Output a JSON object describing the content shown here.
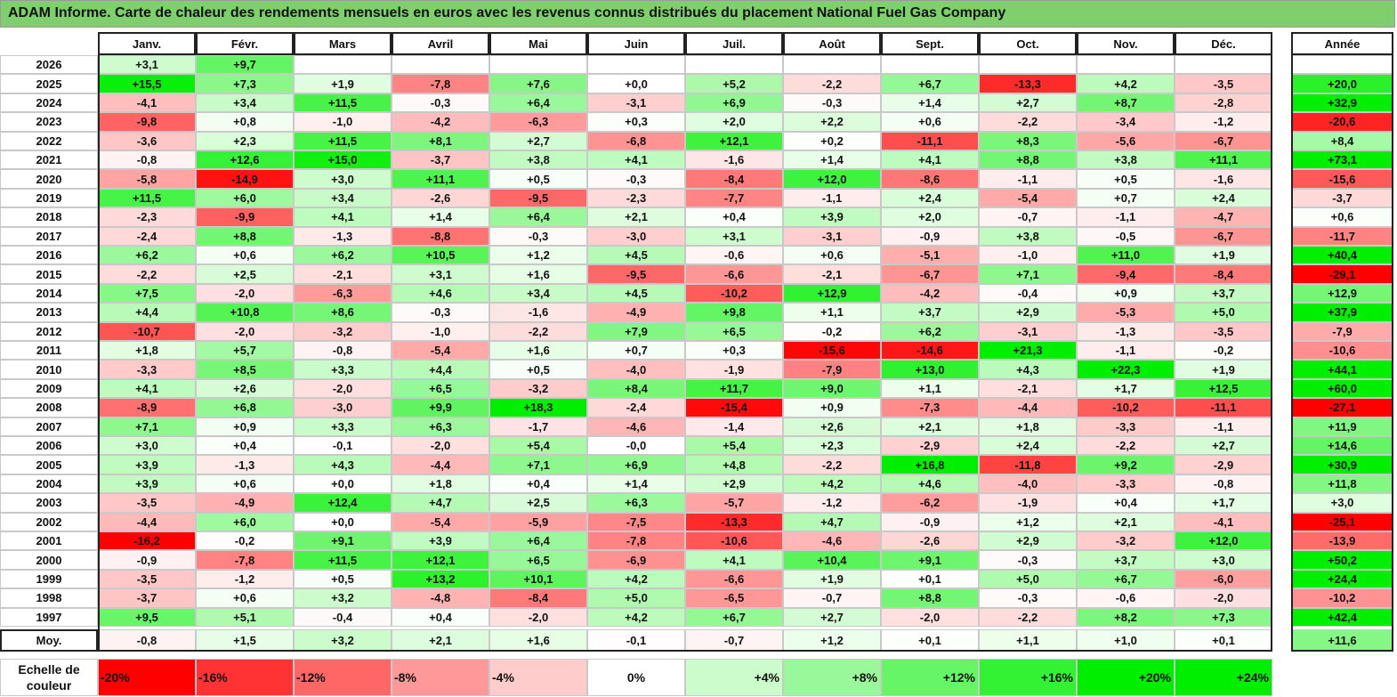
{
  "title": "ADAM Informe. Carte de chaleur des rendements mensuels en euros avec les revenus connus distribués du placement National Fuel Gas Company",
  "chart_data": {
    "type": "heatmap",
    "title": "ADAM Informe. Carte de chaleur des rendements mensuels en euros avec les revenus connus distribués du placement National Fuel Gas Company",
    "months": [
      "Janv.",
      "Févr.",
      "Mars",
      "Avril",
      "Mai",
      "Juin",
      "Juil.",
      "Août",
      "Sept.",
      "Oct.",
      "Nov.",
      "Déc."
    ],
    "year_column_label": "Année",
    "rows": [
      {
        "year": "2026",
        "values": [
          "+3,1",
          "+9,7",
          "",
          "",
          "",
          "",
          "",
          "",
          "",
          "",
          "",
          ""
        ],
        "annual": ""
      },
      {
        "year": "2025",
        "values": [
          "+15,5",
          "+7,3",
          "+1,9",
          "-7,8",
          "+7,6",
          "+0,0",
          "+5,2",
          "-2,2",
          "+6,7",
          "-13,3",
          "+4,2",
          "-3,5"
        ],
        "annual": "+20,0"
      },
      {
        "year": "2024",
        "values": [
          "-4,1",
          "+3,4",
          "+11,5",
          "-0,3",
          "+6,4",
          "-3,1",
          "+6,9",
          "-0,3",
          "+1,4",
          "+2,7",
          "+8,7",
          "-2,8"
        ],
        "annual": "+32,9"
      },
      {
        "year": "2023",
        "values": [
          "-9,8",
          "+0,8",
          "-1,0",
          "-4,2",
          "-6,3",
          "+0,3",
          "+2,0",
          "+2,2",
          "+0,6",
          "-2,2",
          "-3,4",
          "-1,2"
        ],
        "annual": "-20,6"
      },
      {
        "year": "2022",
        "values": [
          "-3,6",
          "+2,3",
          "+11,5",
          "+8,1",
          "+2,7",
          "-6,8",
          "+12,1",
          "+0,2",
          "-11,1",
          "+8,3",
          "-5,6",
          "-6,7"
        ],
        "annual": "+8,4"
      },
      {
        "year": "2021",
        "values": [
          "-0,8",
          "+12,6",
          "+15,0",
          "-3,7",
          "+3,8",
          "+4,1",
          "-1,6",
          "+1,4",
          "+4,1",
          "+8,8",
          "+3,8",
          "+11,1"
        ],
        "annual": "+73,1"
      },
      {
        "year": "2020",
        "values": [
          "-5,8",
          "-14,9",
          "+3,0",
          "+11,1",
          "+0,5",
          "-0,3",
          "-8,4",
          "+12,0",
          "-8,6",
          "-1,1",
          "+0,5",
          "-1,6"
        ],
        "annual": "-15,6"
      },
      {
        "year": "2019",
        "values": [
          "+11,5",
          "+6,0",
          "+3,4",
          "-2,6",
          "-9,5",
          "-2,3",
          "-7,7",
          "-1,1",
          "+2,4",
          "-5,4",
          "+0,7",
          "+2,4"
        ],
        "annual": "-3,7"
      },
      {
        "year": "2018",
        "values": [
          "-2,3",
          "-9,9",
          "+4,1",
          "+1,4",
          "+6,4",
          "+2,1",
          "+0,4",
          "+3,9",
          "+2,0",
          "-0,7",
          "-1,1",
          "-4,7"
        ],
        "annual": "+0,6"
      },
      {
        "year": "2017",
        "values": [
          "-2,4",
          "+8,8",
          "-1,3",
          "-8,8",
          "-0,3",
          "-3,0",
          "+3,1",
          "-3,1",
          "-0,9",
          "+3,8",
          "-0,5",
          "-6,7"
        ],
        "annual": "-11,7"
      },
      {
        "year": "2016",
        "values": [
          "+6,2",
          "+0,6",
          "+6,2",
          "+10,5",
          "+1,2",
          "+4,5",
          "-0,6",
          "+0,6",
          "-5,1",
          "-1,0",
          "+11,0",
          "+1,9"
        ],
        "annual": "+40,4"
      },
      {
        "year": "2015",
        "values": [
          "-2,2",
          "+2,5",
          "-2,1",
          "+3,1",
          "+1,6",
          "-9,5",
          "-6,6",
          "-2,1",
          "-6,7",
          "+7,1",
          "-9,4",
          "-8,4"
        ],
        "annual": "-29,1"
      },
      {
        "year": "2014",
        "values": [
          "+7,5",
          "-2,0",
          "-6,3",
          "+4,6",
          "+3,4",
          "+4,5",
          "-10,2",
          "+12,9",
          "-4,2",
          "-0,4",
          "+0,9",
          "+3,7"
        ],
        "annual": "+12,9"
      },
      {
        "year": "2013",
        "values": [
          "+4,4",
          "+10,8",
          "+8,6",
          "-0,3",
          "-1,6",
          "-4,9",
          "+9,8",
          "+1,1",
          "+3,7",
          "+2,9",
          "-5,3",
          "+5,0"
        ],
        "annual": "+37,9"
      },
      {
        "year": "2012",
        "values": [
          "-10,7",
          "-2,0",
          "-3,2",
          "-1,0",
          "-2,2",
          "+7,9",
          "+6,5",
          "-0,2",
          "+6,2",
          "-3,1",
          "-1,3",
          "-3,5"
        ],
        "annual": "-7,9"
      },
      {
        "year": "2011",
        "values": [
          "+1,8",
          "+5,7",
          "-0,8",
          "-5,4",
          "+1,6",
          "+0,7",
          "+0,3",
          "-15,6",
          "-14,6",
          "+21,3",
          "-1,1",
          "-0,2"
        ],
        "annual": "-10,6"
      },
      {
        "year": "2010",
        "values": [
          "-3,3",
          "+8,5",
          "+3,3",
          "+4,4",
          "+0,5",
          "-4,0",
          "-1,9",
          "-7,9",
          "+13,0",
          "+4,3",
          "+22,3",
          "+1,9"
        ],
        "annual": "+44,1"
      },
      {
        "year": "2009",
        "values": [
          "+4,1",
          "+2,6",
          "-2,0",
          "+6,5",
          "-3,2",
          "+8,4",
          "+11,7",
          "+9,0",
          "+1,1",
          "-2,1",
          "+1,7",
          "+12,5"
        ],
        "annual": "+60,0"
      },
      {
        "year": "2008",
        "values": [
          "-8,9",
          "+6,8",
          "-3,0",
          "+9,9",
          "+18,3",
          "-2,4",
          "-15,4",
          "+0,9",
          "-7,3",
          "-4,4",
          "-10,2",
          "-11,1"
        ],
        "annual": "-27,1"
      },
      {
        "year": "2007",
        "values": [
          "+7,1",
          "+0,9",
          "+3,3",
          "+6,3",
          "-1,7",
          "-4,6",
          "-1,4",
          "+2,6",
          "+2,1",
          "+1,8",
          "-3,3",
          "-1,1"
        ],
        "annual": "+11,9"
      },
      {
        "year": "2006",
        "values": [
          "+3,0",
          "+0,4",
          "-0,1",
          "-2,0",
          "+5,4",
          "-0,0",
          "+5,4",
          "+2,3",
          "-2,9",
          "+2,4",
          "-2,2",
          "+2,7"
        ],
        "annual": "+14,6"
      },
      {
        "year": "2005",
        "values": [
          "+3,9",
          "-1,3",
          "+4,3",
          "-4,4",
          "+7,1",
          "+6,9",
          "+4,8",
          "-2,2",
          "+16,8",
          "-11,8",
          "+9,2",
          "-2,9"
        ],
        "annual": "+30,9"
      },
      {
        "year": "2004",
        "values": [
          "+3,9",
          "+0,6",
          "+0,0",
          "+1,8",
          "+0,4",
          "+1,4",
          "+2,9",
          "+4,2",
          "+4,6",
          "-4,0",
          "-3,3",
          "-0,8"
        ],
        "annual": "+11,8"
      },
      {
        "year": "2003",
        "values": [
          "-3,5",
          "-4,9",
          "+12,4",
          "+4,7",
          "+2,5",
          "+6,3",
          "-5,7",
          "-1,2",
          "-6,2",
          "-1,9",
          "+0,4",
          "+1,7"
        ],
        "annual": "+3,0"
      },
      {
        "year": "2002",
        "values": [
          "-4,4",
          "+6,0",
          "+0,0",
          "-5,4",
          "-5,9",
          "-7,5",
          "-13,3",
          "+4,7",
          "-0,9",
          "+1,2",
          "+2,1",
          "-4,1"
        ],
        "annual": "-25,1"
      },
      {
        "year": "2001",
        "values": [
          "-16,2",
          "-0,2",
          "+9,1",
          "+3,9",
          "+6,4",
          "-7,8",
          "-10,6",
          "-4,6",
          "-2,6",
          "+2,9",
          "-3,2",
          "+12,0"
        ],
        "annual": "-13,9"
      },
      {
        "year": "2000",
        "values": [
          "-0,9",
          "-7,8",
          "+11,5",
          "+12,1",
          "+6,5",
          "-6,9",
          "+4,1",
          "+10,4",
          "+9,1",
          "-0,3",
          "+3,7",
          "+3,0"
        ],
        "annual": "+50,2"
      },
      {
        "year": "1999",
        "values": [
          "-3,5",
          "-1,2",
          "+0,5",
          "+13,2",
          "+10,1",
          "+4,2",
          "-6,6",
          "+1,9",
          "+0,1",
          "+5,0",
          "+6,7",
          "-6,0"
        ],
        "annual": "+24,4"
      },
      {
        "year": "1998",
        "values": [
          "-3,7",
          "+0,6",
          "+3,2",
          "-4,8",
          "-8,4",
          "+5,0",
          "-6,5",
          "-0,7",
          "+8,8",
          "-0,3",
          "-0,6",
          "-2,0"
        ],
        "annual": "-10,2"
      },
      {
        "year": "1997",
        "values": [
          "+9,5",
          "+5,1",
          "-0,4",
          "+0,4",
          "-2,0",
          "+4,2",
          "+6,7",
          "+2,7",
          "-2,0",
          "-2,2",
          "+8,2",
          "+7,3"
        ],
        "annual": "+42,4"
      }
    ],
    "average": {
      "label": "Moy.",
      "values": [
        "-0,8",
        "+1,5",
        "+3,2",
        "+2,1",
        "+1,6",
        "-0,1",
        "-0,7",
        "+1,2",
        "+0,1",
        "+1,1",
        "+1,0",
        "+0,1"
      ],
      "annual": "+11,6"
    },
    "color_scale": {
      "label": "Echelle de couleur",
      "stops": [
        "-20%",
        "-16%",
        "-12%",
        "-8%",
        "-4%",
        "0%",
        "+4%",
        "+8%",
        "+12%",
        "+16%",
        "+20%",
        "+24%"
      ]
    },
    "colors": {
      "negative_max": "#ff0000",
      "neutral": "#ffffff",
      "positive_max": "#00ee00",
      "title_bg": "#7fcf6e"
    }
  }
}
